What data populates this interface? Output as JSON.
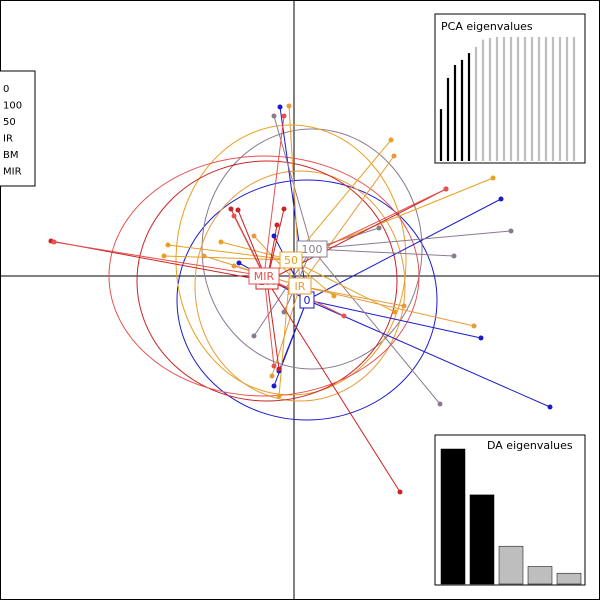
{
  "chart_data": {
    "type": "scatter",
    "title": "",
    "legend": {
      "position": "left",
      "entries": [
        "0",
        "100",
        "50",
        "IR",
        "BM",
        "MIR"
      ]
    },
    "groups": [
      {
        "name": "0",
        "color": "#1a1acc",
        "centroid": [
          13,
          -24
        ],
        "ellipse": {
          "rx": 130,
          "ry": 120
        },
        "points": [
          [
            -14,
            169
          ],
          [
            -15,
            -95
          ],
          [
            207,
            77
          ],
          [
            -55,
            13
          ],
          [
            -20,
            -110
          ],
          [
            187,
            -62
          ],
          [
            256,
            -131
          ],
          [
            -20,
            40
          ]
        ]
      },
      {
        "name": "100",
        "color": "#8a7a90",
        "centroid": [
          18,
          27
        ],
        "ellipse": {
          "rx": 110,
          "ry": 120
        },
        "points": [
          [
            146,
            -128
          ],
          [
            217,
            45
          ],
          [
            -20,
            160
          ],
          [
            160,
            20
          ],
          [
            -40,
            -60
          ],
          [
            85,
            48
          ],
          [
            -10,
            -36
          ]
        ]
      },
      {
        "name": "50",
        "color": "#e8a020",
        "centroid": [
          -3,
          16
        ],
        "ellipse": {
          "rx": 115,
          "ry": 135
        },
        "points": [
          [
            97,
            136
          ],
          [
            199,
            98
          ],
          [
            -126,
            31
          ],
          [
            101,
            -36
          ],
          [
            -73,
            34
          ],
          [
            -15,
            -120
          ],
          [
            40,
            -20
          ],
          [
            -130,
            20
          ]
        ]
      },
      {
        "name": "IR",
        "color": "#e89a3a",
        "centroid": [
          6,
          -10
        ],
        "ellipse": {
          "rx": 105,
          "ry": 115
        },
        "points": [
          [
            -5,
            170
          ],
          [
            -22,
            -100
          ],
          [
            -90,
            20
          ],
          [
            180,
            -50
          ],
          [
            -60,
            10
          ],
          [
            100,
            120
          ],
          [
            -40,
            40
          ],
          [
            110,
            -30
          ]
        ]
      },
      {
        "name": "BM",
        "color": "#cc2222",
        "centroid": [
          -27,
          -5
        ],
        "ellipse": {
          "rx": 130,
          "ry": 120
        },
        "points": [
          [
            -243,
            35
          ],
          [
            -56,
            66
          ],
          [
            -63,
            67
          ],
          [
            -17,
            51
          ],
          [
            -10,
            67
          ],
          [
            -15,
            -93
          ],
          [
            106,
            -216
          ],
          [
            8,
            -17
          ],
          [
            152,
            87
          ]
        ]
      },
      {
        "name": "MIR",
        "color": "#e85050",
        "centroid": [
          -30,
          0
        ],
        "ellipse": {
          "rx": 155,
          "ry": 120
        },
        "points": [
          [
            -240,
            34
          ],
          [
            152,
            87
          ],
          [
            -10,
            160
          ],
          [
            -20,
            -90
          ],
          [
            50,
            -40
          ],
          [
            -60,
            60
          ]
        ]
      }
    ],
    "pca_eigenvalues": {
      "title": "PCA eigenvalues",
      "values": [
        100,
        160,
        185,
        195,
        208,
        220,
        234,
        237,
        239,
        239,
        239,
        239,
        239,
        239,
        239,
        239,
        239,
        239,
        239,
        239
      ],
      "retained": 5
    },
    "da_eigenvalues": {
      "title": "DA eigenvalues",
      "values": [
        100,
        66,
        28,
        13,
        8
      ],
      "retained": 2
    },
    "colors": {
      "background": "#ffffff",
      "axis": "#000000",
      "retained_bar": "#000000",
      "other_bar": "#bebebe"
    }
  }
}
